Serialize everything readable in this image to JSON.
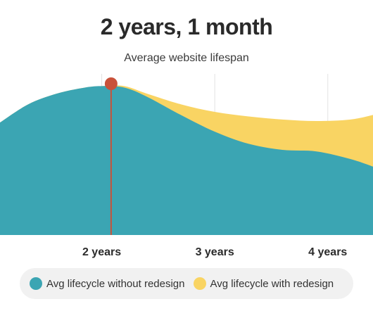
{
  "header": {
    "title": "2 years, 1 month",
    "subtitle": "Average website lifespan"
  },
  "chart_data": {
    "type": "area",
    "x_ticks": [
      {
        "value": 2,
        "label": "2 years"
      },
      {
        "value": 3,
        "label": "3 years"
      },
      {
        "value": 4,
        "label": "4 years"
      }
    ],
    "xlim": [
      1.1,
      4.4
    ],
    "ylim": [
      0,
      1
    ],
    "grid": "vertical",
    "marker": {
      "x": 2.083,
      "label": "2 years, 1 month",
      "color": "#c9523a"
    },
    "series": [
      {
        "name": "Avg lifecycle with redesign",
        "color": "#f9d463",
        "x": [
          1.1,
          1.35,
          1.6,
          1.85,
          2.0,
          2.2,
          2.4,
          2.7,
          3.0,
          3.3,
          3.6,
          3.9,
          4.2,
          4.4
        ],
        "y": [
          0.74,
          0.86,
          0.93,
          0.97,
          0.98,
          0.98,
          0.93,
          0.86,
          0.81,
          0.78,
          0.76,
          0.75,
          0.76,
          0.79
        ]
      },
      {
        "name": "Avg lifecycle without redesign",
        "color": "#3ba5b3",
        "x": [
          1.1,
          1.35,
          1.6,
          1.85,
          2.0,
          2.2,
          2.4,
          2.7,
          3.0,
          3.3,
          3.6,
          3.9,
          4.2,
          4.4
        ],
        "y": [
          0.74,
          0.86,
          0.93,
          0.97,
          0.98,
          0.97,
          0.91,
          0.79,
          0.68,
          0.6,
          0.56,
          0.55,
          0.5,
          0.45
        ]
      }
    ]
  },
  "legend": {
    "items": [
      {
        "label": "Avg lifecycle without redesign",
        "color": "#3ba5b3"
      },
      {
        "label": "Avg lifecycle with redesign",
        "color": "#f9d463"
      }
    ]
  }
}
